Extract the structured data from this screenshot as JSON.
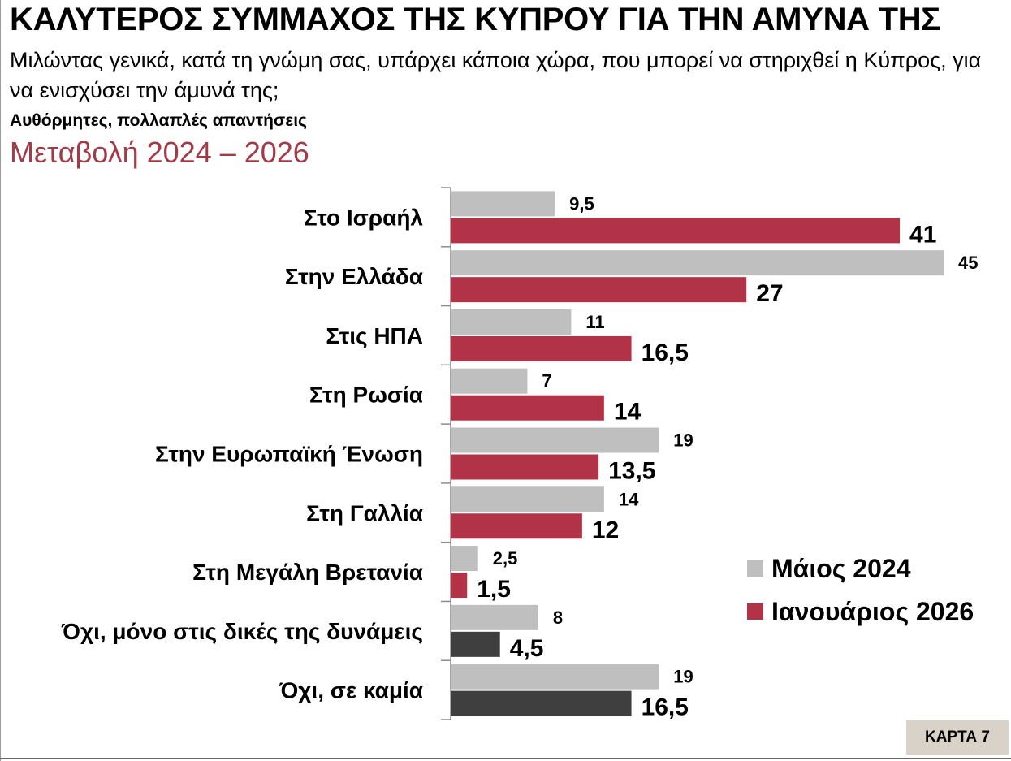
{
  "header": {
    "title": "ΚΑΛΥΤΕΡΟΣ ΣΥΜΜΑΧΟΣ ΤΗΣ ΚΥΠΡΟΥ ΓΙΑ ΤΗΝ ΑΜΥΝΑ ΤΗΣ",
    "question": "Μιλώντας γενικά, κατά τη γνώμη σας, υπάρχει κάποια χώρα, που μπορεί να στηριχθεί η Κύπρος, για να ενισχύσει την άμυνά της;",
    "note": "Αυθόρμητες, πολλαπλές απαντήσεις",
    "subtitle": "Μεταβολή 2024 – 2026"
  },
  "footer": {
    "card_label": "ΚΑΡΤΑ 7"
  },
  "colors": {
    "may_2024": "#bfbfbf",
    "jan_2026": "#b23347",
    "jan_2026_no": "#3f3f3f",
    "subtitle": "#a33a47",
    "card_bg": "#d8d2c8"
  },
  "chart_data": {
    "type": "bar",
    "orientation": "horizontal",
    "categories": [
      "Στο Ισραήλ",
      "Στην Ελλάδα",
      "Στις ΗΠΑ",
      "Στη Ρωσία",
      "Στην Ευρωπαϊκή Ένωση",
      "Στη Γαλλία",
      "Στη Μεγάλη Βρετανία",
      "Όχι, μόνο στις δικές της δυνάμεις",
      "Όχι, σε καμία"
    ],
    "series": [
      {
        "name": "Μάιος 2024",
        "values": [
          9.5,
          45,
          11,
          7,
          19,
          14,
          2.5,
          8,
          19
        ],
        "labels": [
          "9,5",
          "45",
          "11",
          "7",
          "19",
          "14",
          "2,5",
          "8",
          "19"
        ]
      },
      {
        "name": "Ιανουάριος 2026",
        "values": [
          41,
          27,
          16.5,
          14,
          13.5,
          12,
          1.5,
          4.5,
          16.5
        ],
        "labels": [
          "41",
          "27",
          "16,5",
          "14",
          "13,5",
          "12",
          "1,5",
          "4,5",
          "16,5"
        ]
      }
    ],
    "highlight_dark_categories": [
      7,
      8
    ],
    "xlim": [
      0,
      45
    ],
    "legend_position": "right",
    "grid": false
  }
}
